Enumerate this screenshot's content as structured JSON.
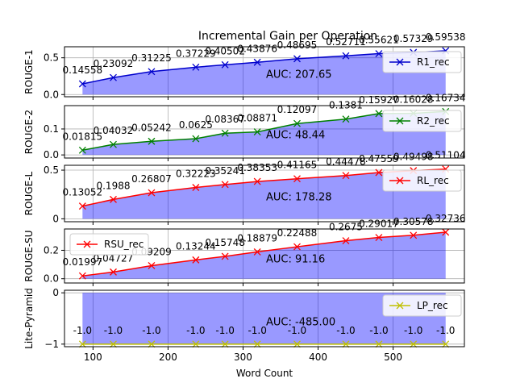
{
  "chart_data": {
    "type": "line",
    "title": "Incremental Gain per Operation",
    "xlabel": "Word Count",
    "x": [
      86,
      127,
      178,
      237,
      276,
      319,
      372,
      437,
      481,
      527,
      570
    ],
    "xlim": [
      62,
      595
    ],
    "xticks": [
      100,
      200,
      300,
      400,
      500
    ],
    "grid": true,
    "panels": [
      {
        "ylabel": "ROUGE-1",
        "series_name": "R1_rec",
        "color": "#0000cc",
        "values": [
          0.14558,
          0.23092,
          0.31225,
          0.37229,
          0.40502,
          0.43876,
          0.48695,
          0.52711,
          0.55621,
          0.57329,
          0.59538
        ],
        "labels": [
          "0.14558",
          "0.23092",
          "0.31225",
          "0.37229",
          "0.40502",
          "0.43876",
          "0.48695",
          "0.52711",
          "0.55621",
          "0.57329",
          "0.59538"
        ],
        "ylim": [
          -0.03,
          0.65
        ],
        "yticks": [
          0.0,
          0.5
        ],
        "ytick_labels": [
          "0.0",
          "0.5"
        ],
        "auc": "AUC: 207.65",
        "legend_loc": "upper right"
      },
      {
        "ylabel": "ROUGE-2",
        "series_name": "R2_rec",
        "color": "#008000",
        "values": [
          0.01815,
          0.04032,
          0.05242,
          0.0625,
          0.08367,
          0.08871,
          0.12097,
          0.1381,
          0.15927,
          0.16028,
          0.16734
        ],
        "labels": [
          "0.01815",
          "0.04032",
          "0.05242",
          "0.0625",
          "0.08367",
          "0.08871",
          "0.12097",
          "0.1381",
          "0.15927",
          "0.16028",
          "0.16734"
        ],
        "ylim": [
          -0.012,
          0.19
        ],
        "yticks": [
          0.0,
          0.1
        ],
        "ytick_labels": [
          "0.0",
          "0.1"
        ],
        "auc": "AUC: 48.44",
        "legend_loc": "upper right"
      },
      {
        "ylabel": "ROUGE-L",
        "series_name": "RL_rec",
        "color": "#ff0000",
        "values": [
          0.13052,
          0.1988,
          0.26807,
          0.32223,
          0.35241,
          0.38353,
          0.41165,
          0.44478,
          0.47559,
          0.49498,
          0.51104
        ],
        "labels": [
          "0.13052",
          "0.1988",
          "0.26807",
          "0.32223",
          "0.35241",
          "0.38353",
          "0.41165",
          "0.44478",
          "0.47559",
          "0.49498",
          "0.51104"
        ],
        "ylim": [
          -0.03,
          0.55
        ],
        "yticks": [
          0.0,
          0.5
        ],
        "ytick_labels": [
          "0",
          "0.5"
        ],
        "auc": "AUC: 178.28",
        "legend_loc": "upper right"
      },
      {
        "ylabel": "ROUGE-SU",
        "series_name": "RSU_rec",
        "color": "#ff0000",
        "values": [
          0.01997,
          0.04727,
          0.09209,
          0.13244,
          0.15748,
          0.18879,
          0.22488,
          0.2675,
          0.29017,
          0.30578,
          0.32736
        ],
        "labels": [
          "0.01997",
          "0.04727",
          "0.09209",
          "0.13244",
          "0.15748",
          "0.18879",
          "0.22488",
          "0.2675",
          "0.29017",
          "0.30578",
          "0.32736"
        ],
        "ylim": [
          -0.03,
          0.35
        ],
        "yticks": [
          0.0,
          0.2
        ],
        "ytick_labels": [
          "0.0",
          "0.2"
        ],
        "auc": "AUC: 91.16",
        "legend_loc": "upper left"
      },
      {
        "ylabel": "Lite-Pyramid",
        "series_name": "LP_rec",
        "color": "#bfbf00",
        "values": [
          -1.0,
          -1.0,
          -1.0,
          -1.0,
          -1.0,
          -1.0,
          -1.0,
          -1.0,
          -1.0,
          -1.0,
          -1.0
        ],
        "labels": [
          "-1.0",
          "-1.0",
          "-1.0",
          "-1.0",
          "-1.0",
          "-1.0",
          "-1.0",
          "-1.0",
          "-1.0",
          "-1.0",
          "-1.0"
        ],
        "ylim": [
          -1.05,
          0.05
        ],
        "yticks": [
          0.0,
          -1.0
        ],
        "ytick_labels": [
          "0",
          "−1"
        ],
        "auc": "AUC: -485.00",
        "legend_loc": "upper right"
      }
    ]
  }
}
